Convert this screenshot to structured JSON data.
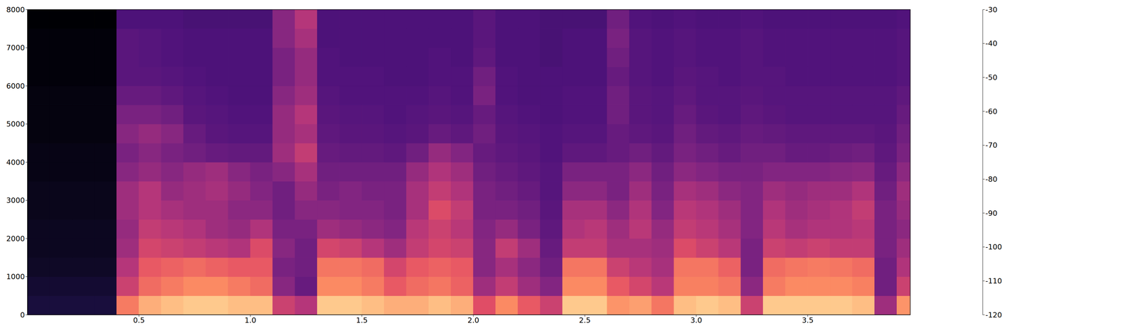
{
  "chart_data": {
    "type": "heatmap",
    "x_edges": [
      0,
      0.1,
      0.2,
      0.3,
      0.4,
      0.5,
      0.6,
      0.7,
      0.8,
      0.9,
      1.0,
      1.1,
      1.2,
      1.3,
      1.4,
      1.5,
      1.6,
      1.7,
      1.8,
      1.9,
      2.0,
      2.1,
      2.2,
      2.3,
      2.4,
      2.5,
      2.6,
      2.7,
      2.8,
      2.9,
      3.0,
      3.1,
      3.2,
      3.3,
      3.4,
      3.5,
      3.6,
      3.7,
      3.8,
      3.9,
      3.96
    ],
    "y_edges": [
      0,
      500,
      1000,
      1500,
      2000,
      2500,
      3000,
      3500,
      4000,
      4500,
      5000,
      5500,
      6000,
      6500,
      7000,
      7500,
      8000
    ],
    "cells": [
      [
        -110,
        -112,
        -114,
        -115,
        -115,
        -116,
        -116,
        -117,
        -117,
        -118,
        -118,
        -118,
        -119,
        -119,
        -119,
        -120
      ],
      [
        -110,
        -112,
        -114,
        -115,
        -115,
        -116,
        -116,
        -117,
        -117,
        -118,
        -118,
        -118,
        -119,
        -119,
        -119,
        -120
      ],
      [
        -110,
        -112,
        -114,
        -115,
        -115,
        -116,
        -116,
        -117,
        -117,
        -118,
        -118,
        -118,
        -119,
        -119,
        -119,
        -120
      ],
      [
        -110,
        -112,
        -114,
        -115,
        -115,
        -116,
        -116,
        -117,
        -117,
        -118,
        -118,
        -118,
        -119,
        -119,
        -119,
        -120
      ],
      [
        -55,
        -70,
        -75,
        -80,
        -82,
        -80,
        -80,
        -85,
        -88,
        -85,
        -88,
        -92,
        -95,
        -95,
        -95,
        -98
      ],
      [
        -45,
        -58,
        -62,
        -68,
        -72,
        -75,
        -75,
        -82,
        -85,
        -82,
        -88,
        -92,
        -95,
        -96,
        -96,
        -98
      ],
      [
        -42,
        -55,
        -60,
        -70,
        -74,
        -78,
        -82,
        -85,
        -88,
        -85,
        -90,
        -94,
        -96,
        -97,
        -97,
        -98
      ],
      [
        -40,
        -52,
        -58,
        -72,
        -76,
        -80,
        -80,
        -82,
        -90,
        -92,
        -95,
        -96,
        -97,
        -98,
        -98,
        -99
      ],
      [
        -40,
        -52,
        -60,
        -74,
        -80,
        -80,
        -78,
        -80,
        -92,
        -95,
        -96,
        -97,
        -98,
        -98,
        -98,
        -99
      ],
      [
        -42,
        -55,
        -62,
        -76,
        -82,
        -84,
        -82,
        -85,
        -93,
        -96,
        -97,
        -98,
        -98,
        -98,
        -98,
        -99
      ],
      [
        -42,
        -58,
        -62,
        -66,
        -76,
        -84,
        -86,
        -88,
        -93,
        -96,
        -97,
        -98,
        -98,
        -98,
        -98,
        -99
      ],
      [
        -70,
        -85,
        -88,
        -85,
        -88,
        -90,
        -90,
        -85,
        -80,
        -82,
        -82,
        -85,
        -88,
        -88,
        -85,
        -85
      ],
      [
        -75,
        -92,
        -90,
        -90,
        -88,
        -85,
        -82,
        -78,
        -72,
        -78,
        -75,
        -80,
        -82,
        -82,
        -78,
        -75
      ],
      [
        -40,
        -52,
        -56,
        -68,
        -80,
        -85,
        -88,
        -90,
        -92,
        -94,
        -95,
        -96,
        -97,
        -97,
        -98,
        -98
      ],
      [
        -40,
        -52,
        -56,
        -70,
        -82,
        -86,
        -86,
        -90,
        -93,
        -95,
        -96,
        -97,
        -97,
        -98,
        -98,
        -98
      ],
      [
        -42,
        -55,
        -58,
        -75,
        -84,
        -86,
        -88,
        -90,
        -93,
        -95,
        -96,
        -97,
        -97,
        -98,
        -98,
        -98
      ],
      [
        -45,
        -62,
        -68,
        -80,
        -86,
        -88,
        -88,
        -90,
        -94,
        -96,
        -97,
        -97,
        -98,
        -98,
        -98,
        -98
      ],
      [
        -45,
        -58,
        -62,
        -72,
        -74,
        -78,
        -78,
        -82,
        -90,
        -95,
        -96,
        -97,
        -98,
        -98,
        -98,
        -98
      ],
      [
        -42,
        -56,
        -60,
        -68,
        -70,
        -66,
        -72,
        -76,
        -82,
        -92,
        -95,
        -96,
        -97,
        -97,
        -98,
        -98
      ],
      [
        -45,
        -60,
        -62,
        -70,
        -74,
        -72,
        -76,
        -80,
        -86,
        -94,
        -96,
        -97,
        -97,
        -98,
        -98,
        -98
      ],
      [
        -65,
        -80,
        -85,
        -85,
        -86,
        -88,
        -88,
        -90,
        -92,
        -90,
        -92,
        -88,
        -90,
        -94,
        -95,
        -95
      ],
      [
        -52,
        -72,
        -78,
        -72,
        -82,
        -88,
        -90,
        -92,
        -94,
        -95,
        -96,
        -97,
        -97,
        -98,
        -98,
        -98
      ],
      [
        -62,
        -80,
        -84,
        -80,
        -88,
        -90,
        -92,
        -94,
        -95,
        -96,
        -97,
        -98,
        -98,
        -98,
        -98,
        -98
      ],
      [
        -70,
        -86,
        -90,
        -92,
        -94,
        -95,
        -96,
        -96,
        -97,
        -97,
        -98,
        -98,
        -98,
        -99,
        -99,
        -99
      ],
      [
        -40,
        -52,
        -56,
        -72,
        -76,
        -78,
        -84,
        -88,
        -94,
        -96,
        -97,
        -97,
        -98,
        -98,
        -98,
        -99
      ],
      [
        -40,
        -52,
        -56,
        -72,
        -74,
        -78,
        -84,
        -88,
        -94,
        -96,
        -97,
        -97,
        -98,
        -98,
        -98,
        -99
      ],
      [
        -50,
        -62,
        -70,
        -78,
        -80,
        -84,
        -88,
        -88,
        -92,
        -92,
        -90,
        -90,
        -92,
        -90,
        -88,
        -90
      ],
      [
        -48,
        -68,
        -74,
        -78,
        -74,
        -76,
        -80,
        -84,
        -90,
        -94,
        -95,
        -95,
        -96,
        -96,
        -96,
        -97
      ],
      [
        -56,
        -74,
        -78,
        -80,
        -82,
        -86,
        -88,
        -90,
        -93,
        -95,
        -96,
        -96,
        -97,
        -97,
        -97,
        -98
      ],
      [
        -42,
        -54,
        -56,
        -66,
        -72,
        -74,
        -78,
        -84,
        -88,
        -90,
        -92,
        -94,
        -95,
        -96,
        -96,
        -97
      ],
      [
        -40,
        -54,
        -56,
        -70,
        -74,
        -76,
        -80,
        -86,
        -90,
        -93,
        -95,
        -96,
        -96,
        -97,
        -97,
        -98
      ],
      [
        -42,
        -56,
        -60,
        -74,
        -78,
        -80,
        -84,
        -88,
        -92,
        -94,
        -96,
        -96,
        -97,
        -97,
        -97,
        -98
      ],
      [
        -70,
        -84,
        -88,
        -88,
        -86,
        -86,
        -86,
        -88,
        -90,
        -92,
        -94,
        -95,
        -96,
        -96,
        -96,
        -97
      ],
      [
        -40,
        -55,
        -58,
        -70,
        -74,
        -76,
        -80,
        -86,
        -90,
        -93,
        -95,
        -96,
        -96,
        -97,
        -97,
        -98
      ],
      [
        -40,
        -52,
        -56,
        -72,
        -78,
        -80,
        -82,
        -86,
        -92,
        -94,
        -96,
        -96,
        -97,
        -97,
        -97,
        -98
      ],
      [
        -40,
        -52,
        -55,
        -70,
        -76,
        -78,
        -80,
        -86,
        -92,
        -94,
        -96,
        -96,
        -97,
        -97,
        -97,
        -98
      ],
      [
        -40,
        -52,
        -56,
        -72,
        -76,
        -76,
        -80,
        -85,
        -91,
        -94,
        -96,
        -96,
        -97,
        -97,
        -97,
        -98
      ],
      [
        -42,
        -54,
        -58,
        -72,
        -74,
        -72,
        -76,
        -84,
        -90,
        -94,
        -96,
        -96,
        -97,
        -97,
        -97,
        -98
      ],
      [
        -80,
        -90,
        -90,
        -88,
        -88,
        -88,
        -90,
        -92,
        -94,
        -95,
        -96,
        -96,
        -97,
        -97,
        -97,
        -98
      ],
      [
        -50,
        -70,
        -76,
        -80,
        -84,
        -82,
        -80,
        -84,
        -88,
        -90,
        -92,
        -94,
        -96,
        -96,
        -96,
        -97
      ]
    ],
    "xlim": [
      0,
      3.96
    ],
    "ylim": [
      0,
      8000
    ],
    "xticks": [
      0.5,
      {
        "value": 1,
        "label": "1.0"
      },
      1.5,
      {
        "value": 2,
        "label": "2.0"
      },
      2.5,
      {
        "value": 3,
        "label": "3.0"
      },
      3.5
    ],
    "yticks": [
      0,
      1000,
      2000,
      3000,
      4000,
      5000,
      6000,
      7000,
      8000
    ],
    "colorbar": {
      "range": [
        -120,
        -30
      ],
      "ticks": [
        -30,
        -40,
        -50,
        -60,
        -70,
        -80,
        -90,
        -100,
        -110,
        -120
      ]
    }
  }
}
